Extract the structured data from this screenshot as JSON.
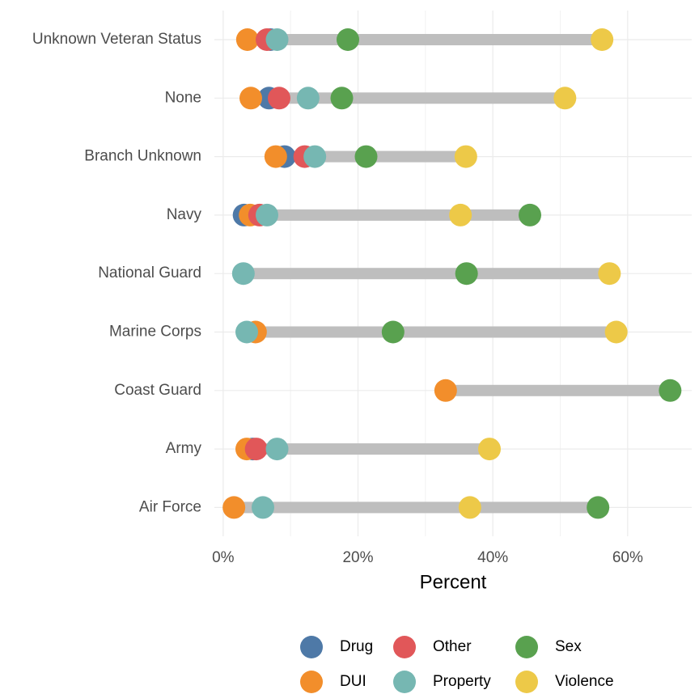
{
  "chart_data": {
    "type": "dot",
    "x_label": "Percent",
    "categories": [
      "Unknown Veteran Status",
      "None",
      "Branch Unknown",
      "Navy",
      "National Guard",
      "Marine Corps",
      "Coast Guard",
      "Army",
      "Air Force"
    ],
    "series": [
      {
        "name": "Drug",
        "color": "#4e79a7",
        "values": [
          7.0,
          6.8,
          9.1,
          3.1,
          null,
          null,
          null,
          4.4,
          null
        ]
      },
      {
        "name": "DUI",
        "color": "#f28e2b",
        "values": [
          3.6,
          4.1,
          7.8,
          4.0,
          null,
          4.8,
          33.0,
          3.5,
          1.6
        ]
      },
      {
        "name": "Other",
        "color": "#e15759",
        "values": [
          6.5,
          8.3,
          12.1,
          5.4,
          null,
          null,
          null,
          4.9,
          null
        ]
      },
      {
        "name": "Property",
        "color": "#76b7b2",
        "values": [
          8.0,
          12.6,
          13.6,
          6.5,
          3.0,
          3.5,
          null,
          8.0,
          5.9
        ]
      },
      {
        "name": "Sex",
        "color": "#59a14f",
        "values": [
          18.5,
          17.6,
          21.2,
          45.5,
          36.1,
          25.2,
          66.3,
          null,
          55.6
        ]
      },
      {
        "name": "Violence",
        "color": "#edc948",
        "values": [
          56.2,
          50.7,
          36.0,
          35.2,
          57.3,
          58.3,
          null,
          39.5,
          36.6
        ]
      }
    ],
    "xlim": [
      -1.3,
      69.5
    ],
    "xticks": [
      {
        "value": 0,
        "label": "0%"
      },
      {
        "value": 20,
        "label": "20%"
      },
      {
        "value": 40,
        "label": "40%"
      },
      {
        "value": 60,
        "label": "60%"
      }
    ],
    "grid": true,
    "legend": "bottom"
  }
}
